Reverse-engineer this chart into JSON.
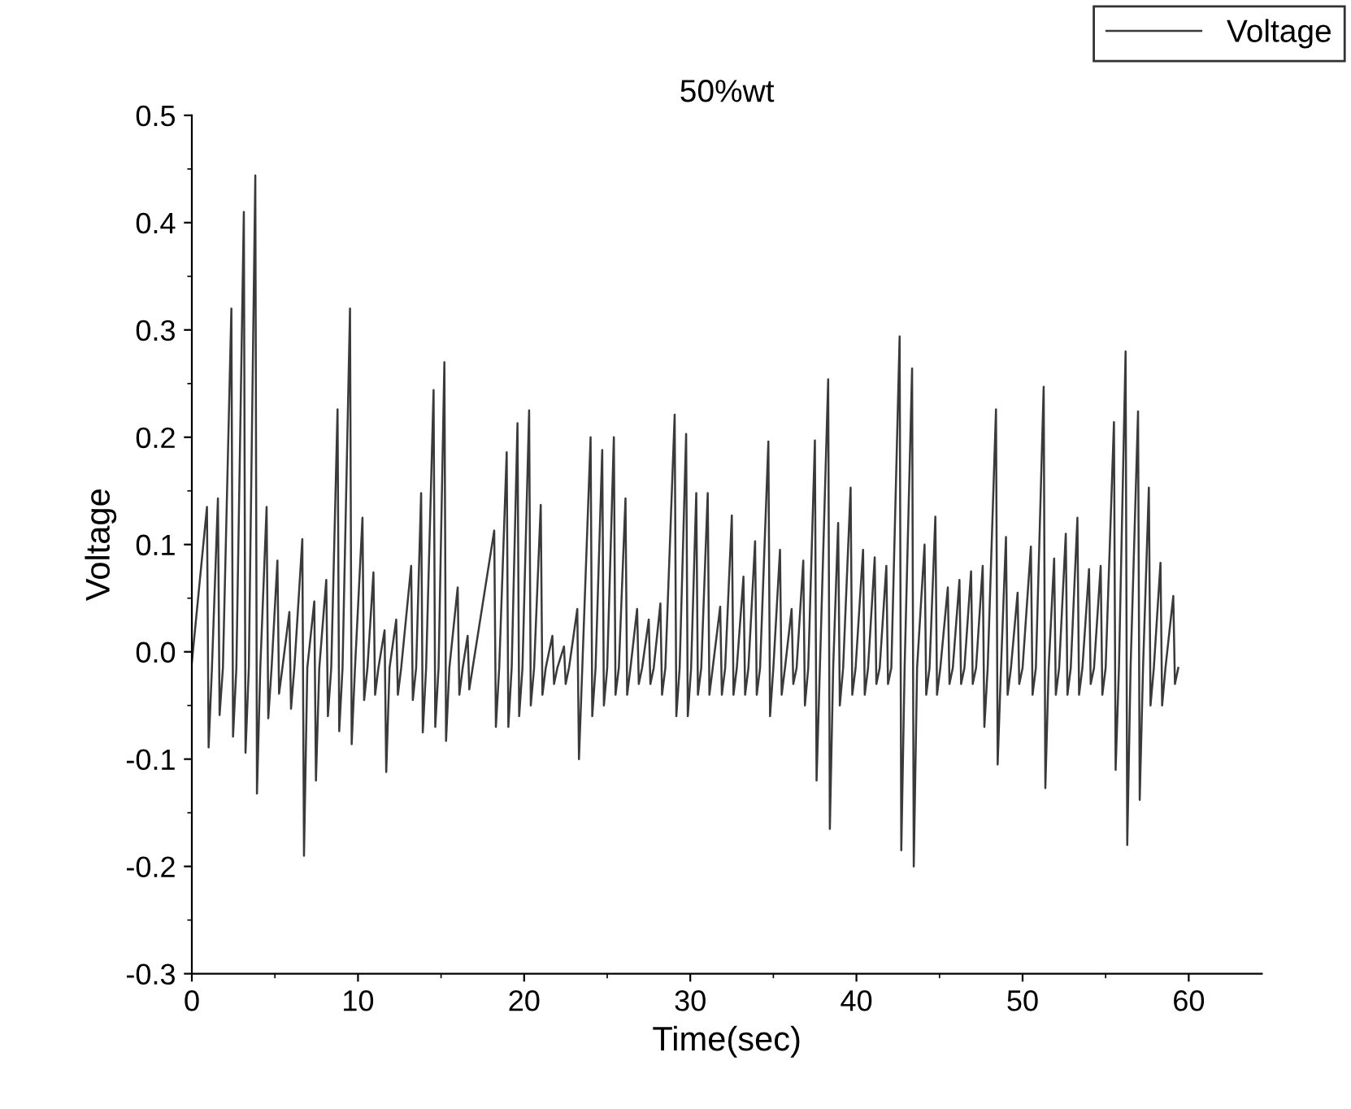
{
  "chart_data": {
    "type": "line",
    "title": "50%wt",
    "xlabel": "Time(sec)",
    "ylabel": "Voltage",
    "xlim": [
      0,
      64.4
    ],
    "ylim": [
      -0.3,
      0.5
    ],
    "xticks": [
      0,
      10,
      20,
      30,
      40,
      50,
      60
    ],
    "yticks": [
      {
        "value": -0.3,
        "label": "-0.3"
      },
      {
        "value": -0.2,
        "label": "-0.2"
      },
      {
        "value": -0.1,
        "label": "-0.1"
      },
      {
        "value": 0.0,
        "label": "0.0"
      },
      {
        "value": 0.1,
        "label": "0.1"
      },
      {
        "value": 0.2,
        "label": "0.2"
      },
      {
        "value": 0.3,
        "label": "0.3"
      },
      {
        "value": 0.4,
        "label": "0.4"
      },
      {
        "value": 0.5,
        "label": "0.5"
      }
    ],
    "grid": false,
    "legend": "top right",
    "marker": "none",
    "line_style": "solid",
    "series": [
      {
        "name": "Voltage",
        "color": "#3a3a3a",
        "x": [
          0,
          0.91,
          1.01,
          1.21,
          1.57,
          1.67,
          1.87,
          2.38,
          2.48,
          2.68,
          3.13,
          3.23,
          3.43,
          3.82,
          3.92,
          4.12,
          4.5,
          4.6,
          4.8,
          5.15,
          5.25,
          5.45,
          5.87,
          5.97,
          6.17,
          6.65,
          6.75,
          6.95,
          7.37,
          7.47,
          7.67,
          8.09,
          8.19,
          8.39,
          8.77,
          8.87,
          9.07,
          9.52,
          9.62,
          9.82,
          10.27,
          10.37,
          10.57,
          10.93,
          11.03,
          11.23,
          11.6,
          11.7,
          11.9,
          12.3,
          12.4,
          12.6,
          13.2,
          13.3,
          13.5,
          13.8,
          13.9,
          14.1,
          14.55,
          14.65,
          14.85,
          15.2,
          15.3,
          15.5,
          16.0,
          16.1,
          16.3,
          16.6,
          16.7,
          16.9,
          18.2,
          18.3,
          18.5,
          18.95,
          19.05,
          19.25,
          19.6,
          19.7,
          19.9,
          20.3,
          20.4,
          20.6,
          21.0,
          21.1,
          21.3,
          21.7,
          21.8,
          22.0,
          22.4,
          22.5,
          22.7,
          23.2,
          23.3,
          23.5,
          24.0,
          24.1,
          24.3,
          24.7,
          24.8,
          25.0,
          25.4,
          25.5,
          25.7,
          26.1,
          26.2,
          26.4,
          26.8,
          26.9,
          27.1,
          27.5,
          27.6,
          27.8,
          28.2,
          28.3,
          28.5,
          29.06,
          29.16,
          29.36,
          29.75,
          29.85,
          30.05,
          30.36,
          30.46,
          30.66,
          31.05,
          31.15,
          31.35,
          31.8,
          31.9,
          32.1,
          32.5,
          32.6,
          32.8,
          33.2,
          33.3,
          33.5,
          33.9,
          34.0,
          34.2,
          34.7,
          34.8,
          35.0,
          35.4,
          35.5,
          35.7,
          36.1,
          36.2,
          36.4,
          36.8,
          36.9,
          37.1,
          37.5,
          37.6,
          37.8,
          38.3,
          38.4,
          38.6,
          38.9,
          39.0,
          39.2,
          39.65,
          39.75,
          39.95,
          40.4,
          40.5,
          40.7,
          41.1,
          41.2,
          41.4,
          41.8,
          41.9,
          42.1,
          42.6,
          42.7,
          42.9,
          43.35,
          43.45,
          43.65,
          44.1,
          44.2,
          44.4,
          44.75,
          44.85,
          45.05,
          45.5,
          45.6,
          45.8,
          46.2,
          46.3,
          46.5,
          46.9,
          47.0,
          47.2,
          47.6,
          47.7,
          47.9,
          48.4,
          48.5,
          48.7,
          49.0,
          49.1,
          49.3,
          49.7,
          49.8,
          50.0,
          50.5,
          50.6,
          50.8,
          51.27,
          51.37,
          51.57,
          51.9,
          52.0,
          52.2,
          52.6,
          52.7,
          52.9,
          53.3,
          53.4,
          53.6,
          54.0,
          54.1,
          54.3,
          54.7,
          54.8,
          55.0,
          55.5,
          55.6,
          55.8,
          56.2,
          56.3,
          56.5,
          56.95,
          57.05,
          57.25,
          57.6,
          57.7,
          57.9,
          58.3,
          58.4,
          58.6,
          59.07,
          59.17,
          59.37
        ],
        "values": [
          -0.01,
          0.135,
          -0.089,
          -0.015,
          0.143,
          -0.059,
          -0.015,
          0.32,
          -0.079,
          -0.015,
          0.41,
          -0.094,
          -0.015,
          0.444,
          -0.132,
          -0.015,
          0.135,
          -0.062,
          -0.015,
          0.085,
          -0.039,
          -0.015,
          0.037,
          -0.053,
          -0.015,
          0.105,
          -0.19,
          -0.015,
          0.047,
          -0.12,
          -0.015,
          0.067,
          -0.06,
          -0.015,
          0.226,
          -0.074,
          -0.015,
          0.32,
          -0.086,
          -0.015,
          0.125,
          -0.045,
          -0.015,
          0.074,
          -0.04,
          -0.015,
          0.02,
          -0.112,
          -0.015,
          0.03,
          -0.04,
          -0.015,
          0.08,
          -0.045,
          -0.015,
          0.148,
          -0.075,
          -0.015,
          0.244,
          -0.07,
          -0.015,
          0.27,
          -0.083,
          -0.015,
          0.06,
          -0.04,
          -0.015,
          0.015,
          -0.035,
          -0.015,
          0.113,
          -0.07,
          -0.015,
          0.186,
          -0.07,
          -0.015,
          0.213,
          -0.06,
          -0.015,
          0.225,
          -0.05,
          -0.015,
          0.137,
          -0.04,
          -0.015,
          0.015,
          -0.03,
          -0.015,
          0.005,
          -0.03,
          -0.015,
          0.04,
          -0.1,
          -0.015,
          0.2,
          -0.06,
          -0.015,
          0.188,
          -0.05,
          -0.015,
          0.2,
          -0.04,
          -0.015,
          0.143,
          -0.04,
          -0.015,
          0.04,
          -0.03,
          -0.015,
          0.03,
          -0.03,
          -0.015,
          0.045,
          -0.04,
          -0.015,
          0.221,
          -0.06,
          -0.015,
          0.203,
          -0.06,
          -0.015,
          0.148,
          -0.04,
          -0.015,
          0.148,
          -0.04,
          -0.015,
          0.042,
          -0.04,
          -0.015,
          0.127,
          -0.04,
          -0.015,
          0.07,
          -0.04,
          -0.015,
          0.103,
          -0.04,
          -0.015,
          0.196,
          -0.06,
          -0.015,
          0.095,
          -0.04,
          -0.015,
          0.04,
          -0.03,
          -0.015,
          0.085,
          -0.05,
          -0.015,
          0.197,
          -0.12,
          -0.015,
          0.254,
          -0.165,
          -0.015,
          0.12,
          -0.05,
          -0.015,
          0.153,
          -0.04,
          -0.015,
          0.095,
          -0.04,
          -0.015,
          0.088,
          -0.03,
          -0.015,
          0.08,
          -0.03,
          -0.015,
          0.294,
          -0.185,
          -0.015,
          0.264,
          -0.2,
          -0.015,
          0.1,
          -0.04,
          -0.015,
          0.126,
          -0.04,
          -0.015,
          0.06,
          -0.03,
          -0.015,
          0.067,
          -0.03,
          -0.015,
          0.075,
          -0.03,
          -0.015,
          0.08,
          -0.07,
          -0.015,
          0.226,
          -0.105,
          -0.015,
          0.107,
          -0.04,
          -0.015,
          0.055,
          -0.03,
          -0.015,
          0.098,
          -0.04,
          -0.015,
          0.247,
          -0.127,
          -0.015,
          0.087,
          -0.04,
          -0.015,
          0.11,
          -0.04,
          -0.015,
          0.125,
          -0.04,
          -0.015,
          0.077,
          -0.03,
          -0.015,
          0.08,
          -0.04,
          -0.015,
          0.214,
          -0.11,
          -0.015,
          0.28,
          -0.18,
          -0.015,
          0.224,
          -0.138,
          -0.015,
          0.153,
          -0.05,
          -0.015,
          0.083,
          -0.05,
          -0.015,
          0.052,
          -0.03,
          -0.015
        ]
      }
    ]
  }
}
